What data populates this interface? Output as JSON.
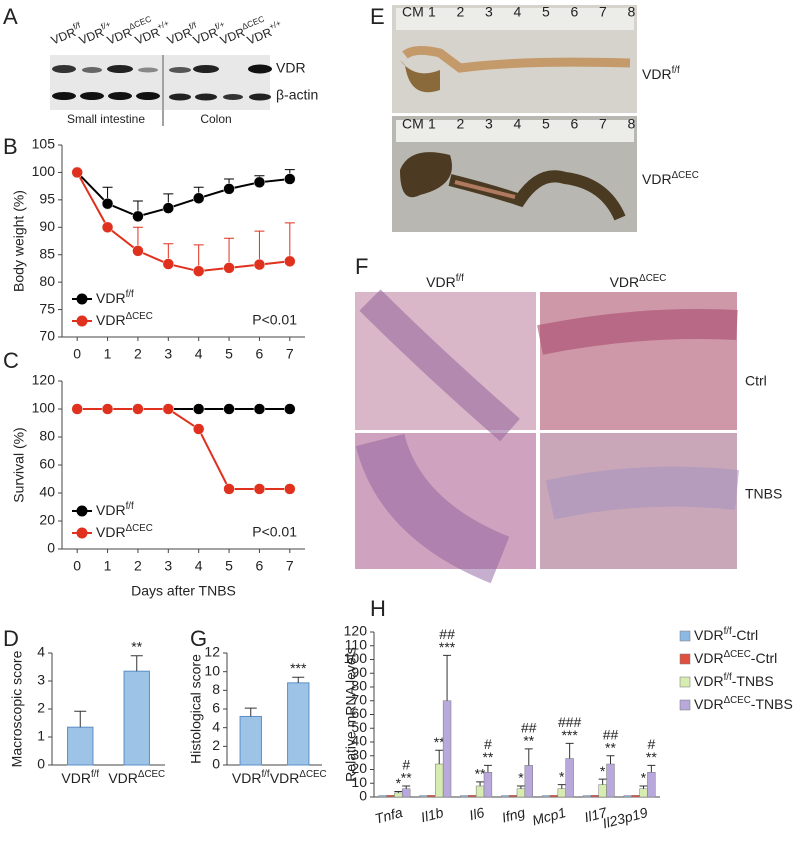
{
  "panels": [
    "A",
    "B",
    "C",
    "D",
    "E",
    "F",
    "G",
    "H"
  ],
  "blot": {
    "lanes": [
      "VDRf/f",
      "VDRf/+",
      "VDRΔCEC",
      "VDR+/+",
      "VDRf/f",
      "VDRf/+",
      "VDRΔCEC",
      "VDR+/+"
    ],
    "rows": [
      "VDR",
      "β-actin"
    ],
    "tissues": [
      "Small intestine",
      "Colon"
    ]
  },
  "photo": {
    "labels": [
      "VDRf/f",
      "VDRΔCEC"
    ],
    "ruler_unit": "CM",
    "ruler_numbers": [
      "1",
      "2",
      "3",
      "4",
      "5",
      "6",
      "7",
      "8"
    ]
  },
  "histology": {
    "columns": [
      "VDRf/f",
      "VDRΔCEC"
    ],
    "rows": [
      "Ctrl",
      "TNBS"
    ]
  },
  "chart_data": [
    {
      "type": "line",
      "ylabel": "Body weight (%)",
      "x": [
        0,
        1,
        2,
        3,
        4,
        5,
        6,
        7
      ],
      "xlim": [
        -0.5,
        7.5
      ],
      "xticks": [
        0,
        1,
        2,
        3,
        4,
        5,
        6,
        7
      ],
      "ylim": [
        70,
        105
      ],
      "yticks": [
        70,
        75,
        80,
        85,
        90,
        95,
        100,
        105
      ],
      "legend": "lower left",
      "annotation": "P<0.01",
      "series": [
        {
          "name": "VDRf/f",
          "color": "#000000",
          "values": [
            100,
            94.3,
            92,
            93.5,
            95.3,
            97,
            98.2,
            98.8
          ],
          "errors": [
            0,
            3,
            2.8,
            2.6,
            2,
            1.8,
            1.2,
            1.7
          ]
        },
        {
          "name": "VDRΔCEC",
          "color": "#e0301e",
          "values": [
            100,
            90,
            85.7,
            83.3,
            82,
            82.6,
            83.2,
            83.8
          ],
          "errors": [
            0,
            0,
            4.3,
            3.7,
            4.8,
            5.4,
            6.1,
            7
          ]
        }
      ]
    },
    {
      "type": "line",
      "ylabel": "Survival (%)",
      "xlabel": "Days after TNBS",
      "x": [
        0,
        1,
        2,
        3,
        4,
        5,
        6,
        7
      ],
      "xlim": [
        -0.5,
        7.5
      ],
      "xticks": [
        0,
        1,
        2,
        3,
        4,
        5,
        6,
        7
      ],
      "ylim": [
        0,
        120
      ],
      "yticks": [
        0,
        20,
        40,
        60,
        80,
        100,
        120
      ],
      "legend": "lower left",
      "annotation": "P<0.01",
      "series": [
        {
          "name": "VDRf/f",
          "color": "#000000",
          "values": [
            100,
            100,
            100,
            100,
            100,
            100,
            100,
            100
          ]
        },
        {
          "name": "VDRΔCEC",
          "color": "#e0301e",
          "values": [
            100,
            100,
            100,
            100,
            85.7,
            42.9,
            42.9,
            42.9
          ]
        }
      ]
    },
    {
      "type": "bar",
      "ylabel": "Macroscopic score",
      "categories": [
        "VDRf/f",
        "VDRΔCEC"
      ],
      "values": [
        1.35,
        3.35
      ],
      "errors": [
        0.57,
        0.55
      ],
      "significance": [
        null,
        "**"
      ],
      "color": "#9dc3e6",
      "ylim": [
        0,
        4
      ],
      "yticks": [
        0,
        1,
        2,
        3,
        4
      ]
    },
    {
      "type": "bar",
      "ylabel": "Histological score",
      "categories": [
        "VDRf/f",
        "VDRΔCEC"
      ],
      "values": [
        5.2,
        8.8
      ],
      "errors": [
        0.9,
        0.6
      ],
      "significance": [
        null,
        "***"
      ],
      "color": "#9dc3e6",
      "ylim": [
        0,
        12
      ],
      "yticks": [
        0,
        2,
        4,
        6,
        8,
        10,
        12
      ]
    },
    {
      "type": "grouped_bar",
      "ylabel": "Relative mRNA levels",
      "categories": [
        "Tnfa",
        "Il1b",
        "Il6",
        "Ifng",
        "Mcp1",
        "Il17",
        "Il23p19"
      ],
      "ylim": [
        0,
        120
      ],
      "yticks": [
        0,
        10,
        20,
        30,
        40,
        50,
        60,
        70,
        80,
        90,
        100,
        110,
        120
      ],
      "legend": "right",
      "series": [
        {
          "name": "VDRf/f-Ctrl",
          "color": "#8db8e2",
          "values": [
            1,
            1,
            1,
            1,
            1,
            1,
            1
          ]
        },
        {
          "name": "VDRΔCEC-Ctrl",
          "color": "#e0503e",
          "values": [
            1.2,
            1.2,
            1.2,
            1.2,
            1.2,
            1.2,
            1.2
          ]
        },
        {
          "name": "VDRf/f-TNBS",
          "color": "#d6ecb0",
          "values": [
            3,
            24,
            8,
            6,
            6,
            9,
            6
          ],
          "errors": [
            1,
            10,
            3,
            2,
            3,
            4,
            2
          ],
          "significance": [
            "*",
            "**",
            "**",
            "*",
            "*",
            "*",
            "*"
          ]
        },
        {
          "name": "VDRΔCEC-TNBS",
          "color": "#b9a8dc",
          "values": [
            6,
            70,
            18,
            23,
            28,
            24,
            18
          ],
          "errors": [
            2,
            33,
            5,
            12,
            11,
            6,
            5
          ],
          "significance": [
            "**",
            "***",
            "**",
            "**",
            "***",
            "**",
            "**"
          ],
          "significance_hash": [
            "#",
            "##",
            "#",
            "##",
            "###",
            "##",
            "#"
          ]
        }
      ]
    }
  ]
}
